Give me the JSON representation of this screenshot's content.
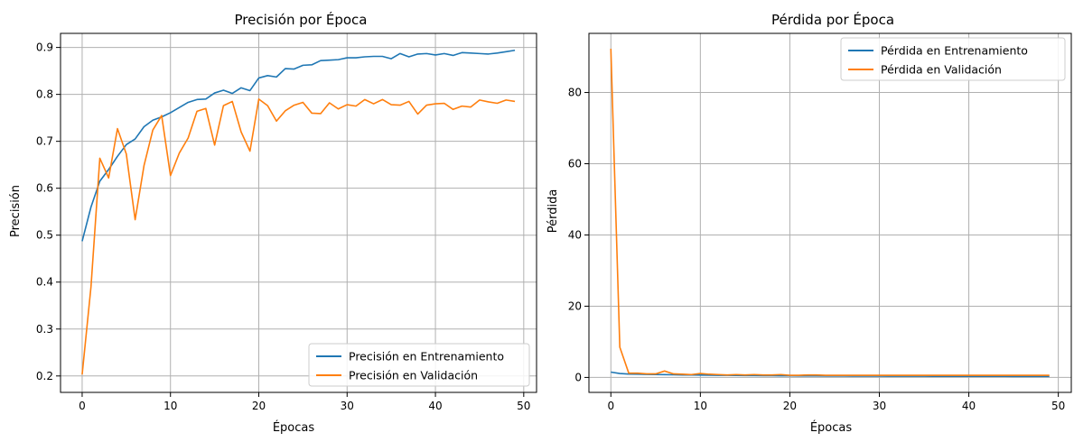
{
  "colors": {
    "train": "#1f77b4",
    "validation": "#ff7f0e"
  },
  "chart_data": [
    {
      "type": "line",
      "title": "Precisión por Época",
      "xlabel": "Épocas",
      "ylabel": "Precisión",
      "xlim": [
        -2.45,
        51.45
      ],
      "ylim": [
        0.165,
        0.93
      ],
      "xticks": [
        0,
        10,
        20,
        30,
        40,
        50
      ],
      "yticks": [
        0.2,
        0.3,
        0.4,
        0.5,
        0.6,
        0.7,
        0.8,
        0.9
      ],
      "ytick_labels": [
        "0.2",
        "0.3",
        "0.4",
        "0.5",
        "0.6",
        "0.7",
        "0.8",
        "0.9"
      ],
      "grid": true,
      "legend_position": "lower-right",
      "x": [
        0,
        1,
        2,
        3,
        4,
        5,
        6,
        7,
        8,
        9,
        10,
        11,
        12,
        13,
        14,
        15,
        16,
        17,
        18,
        19,
        20,
        21,
        22,
        23,
        24,
        25,
        26,
        27,
        28,
        29,
        30,
        31,
        32,
        33,
        34,
        35,
        36,
        37,
        38,
        39,
        40,
        41,
        42,
        43,
        44,
        45,
        46,
        47,
        48,
        49
      ],
      "series": [
        {
          "name": "Precisión en Entrenamiento",
          "color_key": "train",
          "values": [
            0.487,
            0.56,
            0.615,
            0.64,
            0.668,
            0.693,
            0.705,
            0.731,
            0.745,
            0.752,
            0.761,
            0.772,
            0.783,
            0.789,
            0.79,
            0.803,
            0.809,
            0.802,
            0.814,
            0.808,
            0.835,
            0.84,
            0.837,
            0.855,
            0.854,
            0.862,
            0.863,
            0.872,
            0.873,
            0.874,
            0.878,
            0.878,
            0.88,
            0.881,
            0.881,
            0.876,
            0.887,
            0.88,
            0.886,
            0.887,
            0.884,
            0.887,
            0.883,
            0.889,
            0.888,
            0.887,
            0.886,
            0.888,
            0.891,
            0.894
          ]
        },
        {
          "name": "Precisión en Validación",
          "color_key": "validation",
          "values": [
            0.203,
            0.39,
            0.664,
            0.622,
            0.727,
            0.673,
            0.533,
            0.648,
            0.724,
            0.755,
            0.627,
            0.675,
            0.707,
            0.764,
            0.77,
            0.692,
            0.776,
            0.785,
            0.72,
            0.679,
            0.79,
            0.776,
            0.743,
            0.765,
            0.777,
            0.783,
            0.76,
            0.759,
            0.782,
            0.769,
            0.778,
            0.775,
            0.789,
            0.78,
            0.789,
            0.778,
            0.777,
            0.785,
            0.758,
            0.777,
            0.78,
            0.781,
            0.768,
            0.775,
            0.773,
            0.788,
            0.784,
            0.781,
            0.788,
            0.785
          ]
        }
      ]
    },
    {
      "type": "line",
      "title": "Pérdida por Época",
      "xlabel": "Épocas",
      "ylabel": "Pérdida",
      "xlim": [
        -2.45,
        51.45
      ],
      "ylim": [
        -4.2,
        96.6
      ],
      "xticks": [
        0,
        10,
        20,
        30,
        40,
        50
      ],
      "yticks": [
        0,
        20,
        40,
        60,
        80
      ],
      "ytick_labels": [
        "0",
        "20",
        "40",
        "60",
        "80"
      ],
      "grid": true,
      "legend_position": "upper-right",
      "x": [
        0,
        1,
        2,
        3,
        4,
        5,
        6,
        7,
        8,
        9,
        10,
        11,
        12,
        13,
        14,
        15,
        16,
        17,
        18,
        19,
        20,
        21,
        22,
        23,
        24,
        25,
        26,
        27,
        28,
        29,
        30,
        31,
        32,
        33,
        34,
        35,
        36,
        37,
        38,
        39,
        40,
        41,
        42,
        43,
        44,
        45,
        46,
        47,
        48,
        49
      ],
      "series": [
        {
          "name": "Pérdida en Entrenamiento",
          "color_key": "train",
          "values": [
            1.5,
            1.1,
            0.95,
            0.9,
            0.85,
            0.8,
            0.78,
            0.74,
            0.7,
            0.68,
            0.66,
            0.63,
            0.6,
            0.58,
            0.56,
            0.54,
            0.52,
            0.5,
            0.49,
            0.48,
            0.46,
            0.45,
            0.44,
            0.42,
            0.41,
            0.4,
            0.39,
            0.38,
            0.37,
            0.37,
            0.36,
            0.35,
            0.35,
            0.34,
            0.33,
            0.33,
            0.32,
            0.32,
            0.31,
            0.31,
            0.3,
            0.3,
            0.3,
            0.3,
            0.3,
            0.29,
            0.29,
            0.29,
            0.29,
            0.29
          ]
        },
        {
          "name": "Pérdida en Validación",
          "color_key": "validation",
          "values": [
            92.3,
            8.5,
            1.2,
            1.2,
            1.0,
            1.0,
            1.8,
            1.0,
            0.9,
            0.8,
            1.1,
            0.9,
            0.8,
            0.7,
            0.8,
            0.7,
            0.8,
            0.7,
            0.7,
            0.8,
            0.6,
            0.6,
            0.7,
            0.7,
            0.6,
            0.6,
            0.6,
            0.6,
            0.6,
            0.6,
            0.6,
            0.6,
            0.6,
            0.6,
            0.6,
            0.6,
            0.6,
            0.6,
            0.6,
            0.6,
            0.6,
            0.6,
            0.6,
            0.6,
            0.6,
            0.6,
            0.6,
            0.6,
            0.6,
            0.6
          ]
        }
      ]
    }
  ]
}
